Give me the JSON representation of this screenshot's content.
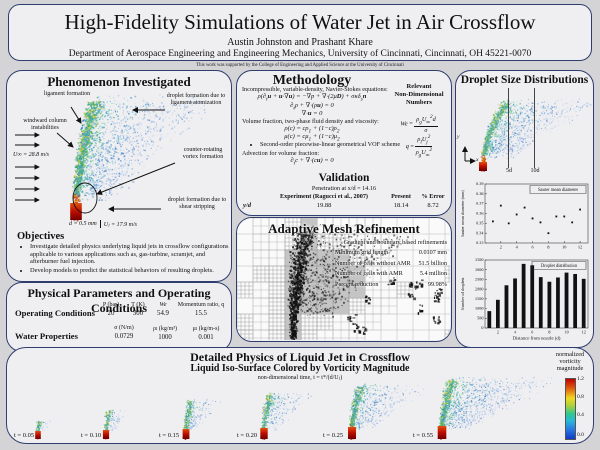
{
  "header": {
    "title": "High-Fidelity Simulations of Water Jet in Air Crossflow",
    "authors": "Austin Johnston and Prashant Khare",
    "affiliation": "Department of Aerospace Engineering and Engineering Mechanics, University of Cincinnati, Cincinnati, OH 45221-0070",
    "funding_note": "This work was supported by the College of Engineering and Applied Science at the University of Cincinnati"
  },
  "phenomenon": {
    "title": "Phenomenon Investigated",
    "annotations": {
      "ligament": "ligament formation",
      "droplet_ligament": "droplet formation due to ligament atomization",
      "windward": "windward column instabilities",
      "vortex": "counter-rotating vortex formation",
      "shear": "droplet formation due to shear stripping"
    },
    "crossflow_velocity": "U∞ = 28.8 m/s",
    "nozzle_diameter": "d = 0.5 mm",
    "jet_velocity": "Uⱼ = 17.9 m/s",
    "objectives_title": "Objectives",
    "objectives": [
      "Investigate detailed physics underlying liquid jets in crossflow configurations applicable to various applications such as, gas-turbine, scramjet, and afterburner fuel injection.",
      "Develop models to predict the statistical behaviors of resulting droplets."
    ]
  },
  "methodology": {
    "title": "Methodology",
    "intro": "Incompressible, variable-density, Navier-Stokes equations:",
    "eq_ns": "ρ(∂<sub>t</sub><b>u</b> + <b>u</b>·∇<b>u</b>) = −∇p + ∇·(2μ<b>D</b>) + σκδ<sub>s</sub><b>n</b>",
    "eq_mass": "∂<sub>t</sub>ρ + ∇·(ρ<b>u</b>) = 0",
    "eq_div": "∇·<b>u</b> = 0",
    "volume_label": "Volume fraction, two-phase fluid density and viscosity:",
    "eq_rho": "ρ(c) = cρ<sub>1</sub> + (1−c)ρ<sub>2</sub>",
    "eq_mu": "μ(c) = cμ<sub>1</sub> + (1−c)μ<sub>2</sub>",
    "vof_bullet": "Second-order piecewise-linear geometrical VOF scheme",
    "advection_label": "Advection for volume fraction:",
    "eq_adv": "∂<sub>t</sub>c + ∇·(c<b>u</b>) = 0",
    "nondim": {
      "title_lines": [
        "Relevant",
        "Non-Dimensional",
        "Numbers"
      ],
      "we_lhs": "<i>We</i> =",
      "we_num": "ρ<sub>g</sub>U<sub>∞</sub><sup>2</sup>d",
      "we_den": "σ",
      "q_lhs": "<i>q</i> =",
      "q_num": "ρ<sub>l</sub>U<sub>j</sub><sup>2</sup>",
      "q_den": "ρ<sub>g</sub>U<sub>∞</sub><sup>2</sup>"
    }
  },
  "validation": {
    "title": "Validation",
    "subtitle": "Penetration at x/d = 14.16",
    "col_experiment": "Experiment (Ragucci et al., 2007)",
    "col_present": "Present",
    "col_error": "% Error",
    "row_label": "y/d",
    "experiment_value": "19.88",
    "present_value": "18.14",
    "error_value": "8.72"
  },
  "amr": {
    "title": "Adaptive Mesh Refinement",
    "note": "Gradient and boundary based refinements",
    "rows": [
      {
        "label": "Minimum grid length",
        "value": "0.0107 mm"
      },
      {
        "label": "Number of cells without AMR",
        "value": "51.5 billion"
      },
      {
        "label": "Number of cells with AMR",
        "value": "5.4 million"
      },
      {
        "label": "Percent reduction",
        "value": "99.98%"
      }
    ]
  },
  "droplet_panel": {
    "title": "Droplet Size Distributions",
    "line_5d": "5d",
    "line_10d": "10d",
    "axis_x": "x",
    "axis_y": "y"
  },
  "parameters": {
    "title": "Physical Parameters and Operating Conditions",
    "operating": {
      "label": "Operating Conditions",
      "cols": [
        {
          "h": "P (bar)",
          "v": "20"
        },
        {
          "h": "T (K)",
          "v": "300"
        },
        {
          "h": "We",
          "v": "54.9"
        },
        {
          "h": "Momentum ratio, q",
          "v": "15.5"
        }
      ]
    },
    "water": {
      "label": "Water Properties",
      "cols": [
        {
          "h": "σ (N/m)",
          "v": "0.0729"
        },
        {
          "h": "ρₗ (kg/m³)",
          "v": "1000"
        },
        {
          "h": "μₗ (kg/m-s)",
          "v": "0.001"
        }
      ]
    }
  },
  "bottom": {
    "title": "Detailed Physics of Liquid Jet in Crossflow",
    "subtitle": "Liquid Iso-Surface Colored by Vorticity Magnitude",
    "time_note": "non-dimensional time, t = t*/(d/Uⱼ)",
    "snapshots": [
      "t = 0.05",
      "t = 0.10",
      "t = 0.15",
      "t = 0.20",
      "t = 0.25",
      "t = 0.55"
    ],
    "colorbar": {
      "label_lines": [
        "normalized",
        "vorticity",
        "magnitude"
      ],
      "ticks": [
        "1.2",
        "0.8",
        "0.4",
        "0.0"
      ]
    }
  },
  "colors": {
    "panel_border": "#2f3e6f",
    "panel_bg": "#efeff1",
    "page_bg": "#d4d4d7",
    "vort_high": "#c00000",
    "vort_low": "#1038c8"
  },
  "chart_data": [
    {
      "type": "scatter",
      "title": "Sauter mean diameter",
      "ylabel": "Sauter mean diameter (mm)",
      "x": [
        1,
        2,
        3,
        4,
        5,
        6,
        7,
        8,
        9,
        10,
        11,
        12
      ],
      "y": [
        0.352,
        0.368,
        0.35,
        0.359,
        0.366,
        0.355,
        0.351,
        0.34,
        0.357,
        0.357,
        0.351,
        0.364
      ],
      "ylim": [
        0.33,
        0.39
      ],
      "ytick_step": 0.01,
      "xlim": [
        0,
        13
      ],
      "xticks": [
        2,
        4,
        6,
        8,
        10,
        12
      ]
    },
    {
      "type": "bar",
      "title": "Droplet distribution",
      "ylabel": "Number of droplets",
      "xlabel": "Distance from nozzle (d)",
      "categories": [
        1,
        2,
        3,
        4,
        5,
        6,
        7,
        8,
        9,
        10,
        11,
        12
      ],
      "values": [
        870,
        1450,
        2200,
        2550,
        3300,
        3230,
        2620,
        2380,
        2600,
        2850,
        2780,
        2530
      ],
      "ylim": [
        0,
        3500
      ],
      "ytick_step": 500,
      "xticks": [
        2,
        4,
        6,
        8,
        10,
        12
      ]
    }
  ]
}
